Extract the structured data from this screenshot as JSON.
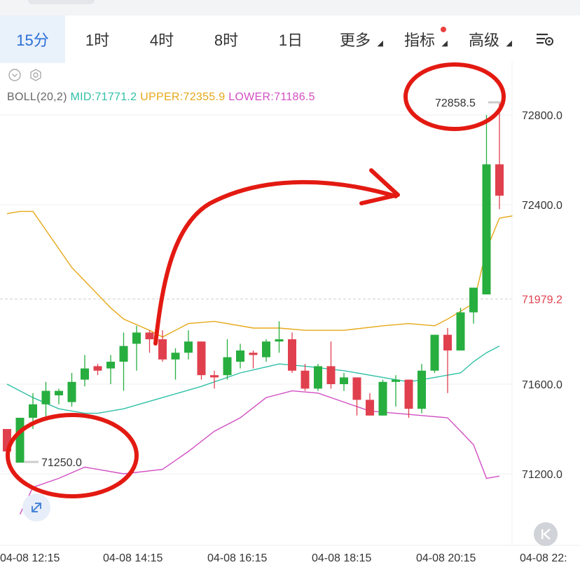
{
  "tabs": [
    {
      "label": "15分",
      "active": true
    },
    {
      "label": "1时"
    },
    {
      "label": "4时"
    },
    {
      "label": "8时"
    },
    {
      "label": "1日"
    },
    {
      "label": "更多",
      "dropdown": true
    },
    {
      "label": "指标",
      "dropdown": true,
      "badge": true
    },
    {
      "label": "高级",
      "dropdown": true
    }
  ],
  "indicator": {
    "name": "BOLL(20,2)",
    "mid": "MID:71771.2",
    "upper": "UPPER:72355.9",
    "lower": "LOWER:71186.5"
  },
  "colors": {
    "up": "#27ae3f",
    "down": "#e0404e",
    "mid": "#2fc0a6",
    "upper": "#e6a817",
    "lower": "#d24fc4",
    "annotation": "#e31a12",
    "price_tag": "#e0404e",
    "accent": "#2a6fd6"
  },
  "icons": [
    "settings-icon",
    "collapse-icon",
    "expand-icon",
    "chevron-down-icon",
    "gear-icon"
  ],
  "chart_data": {
    "type": "candlestick",
    "y_ticks": [
      72800.0,
      72400.0,
      71600.0,
      71200.0
    ],
    "y_tick_labels": [
      "72800.0",
      "72400.0",
      "71600.0",
      "71200.0"
    ],
    "x_tick_labels": [
      "04-08 12:15",
      "04-08 14:15",
      "04-08 16:15",
      "04-08 18:15",
      "04-08 20:15",
      "04-08 22:"
    ],
    "current_price": 71979.2,
    "current_price_label": "71979.2",
    "max_label": "72858.5",
    "min_label": "71250.0",
    "ylim": [
      70950,
      73080
    ],
    "candles": [
      {
        "o": 71400,
        "h": 71400,
        "l": 71300,
        "c": 71300
      },
      {
        "o": 71250,
        "h": 71450,
        "l": 71250,
        "c": 71450
      },
      {
        "o": 71450,
        "h": 71560,
        "l": 71400,
        "c": 71510
      },
      {
        "o": 71510,
        "h": 71610,
        "l": 71450,
        "c": 71570
      },
      {
        "o": 71550,
        "h": 71580,
        "l": 71510,
        "c": 71570
      },
      {
        "o": 71520,
        "h": 71650,
        "l": 71500,
        "c": 71610
      },
      {
        "o": 71620,
        "h": 71730,
        "l": 71590,
        "c": 71670
      },
      {
        "o": 71680,
        "h": 71690,
        "l": 71640,
        "c": 71660
      },
      {
        "o": 71670,
        "h": 71730,
        "l": 71600,
        "c": 71700
      },
      {
        "o": 71700,
        "h": 71830,
        "l": 71570,
        "c": 71770
      },
      {
        "o": 71780,
        "h": 71860,
        "l": 71660,
        "c": 71830
      },
      {
        "o": 71830,
        "h": 71840,
        "l": 71740,
        "c": 71800
      },
      {
        "o": 71800,
        "h": 71840,
        "l": 71700,
        "c": 71710
      },
      {
        "o": 71710,
        "h": 71760,
        "l": 71620,
        "c": 71740
      },
      {
        "o": 71740,
        "h": 71840,
        "l": 71710,
        "c": 71790
      },
      {
        "o": 71790,
        "h": 71790,
        "l": 71620,
        "c": 71640
      },
      {
        "o": 71640,
        "h": 71660,
        "l": 71580,
        "c": 71630
      },
      {
        "o": 71640,
        "h": 71800,
        "l": 71620,
        "c": 71720
      },
      {
        "o": 71700,
        "h": 71780,
        "l": 71670,
        "c": 71750
      },
      {
        "o": 71740,
        "h": 71750,
        "l": 71670,
        "c": 71730
      },
      {
        "o": 71720,
        "h": 71800,
        "l": 71700,
        "c": 71790
      },
      {
        "o": 71790,
        "h": 71880,
        "l": 71740,
        "c": 71800
      },
      {
        "o": 71800,
        "h": 71830,
        "l": 71650,
        "c": 71660
      },
      {
        "o": 71660,
        "h": 71690,
        "l": 71570,
        "c": 71580
      },
      {
        "o": 71580,
        "h": 71690,
        "l": 71570,
        "c": 71680
      },
      {
        "o": 71680,
        "h": 71790,
        "l": 71580,
        "c": 71600
      },
      {
        "o": 71600,
        "h": 71650,
        "l": 71570,
        "c": 71630
      },
      {
        "o": 71630,
        "h": 71630,
        "l": 71460,
        "c": 71530
      },
      {
        "o": 71530,
        "h": 71560,
        "l": 71460,
        "c": 71460
      },
      {
        "o": 71460,
        "h": 71620,
        "l": 71460,
        "c": 71610
      },
      {
        "o": 71610,
        "h": 71640,
        "l": 71500,
        "c": 71620
      },
      {
        "o": 71620,
        "h": 71620,
        "l": 71450,
        "c": 71490
      },
      {
        "o": 71490,
        "h": 71690,
        "l": 71470,
        "c": 71660
      },
      {
        "o": 71660,
        "h": 71820,
        "l": 71650,
        "c": 71820
      },
      {
        "o": 71820,
        "h": 71850,
        "l": 71560,
        "c": 71750
      },
      {
        "o": 71750,
        "h": 71940,
        "l": 71750,
        "c": 71920
      },
      {
        "o": 71920,
        "h": 72030,
        "l": 71870,
        "c": 72030
      },
      {
        "o": 72000,
        "h": 72800,
        "l": 72000,
        "c": 72580
      },
      {
        "o": 72580,
        "h": 72858.5,
        "l": 72380,
        "c": 72440
      }
    ],
    "boll_upper": [
      [
        0,
        72360
      ],
      [
        1,
        72370
      ],
      [
        2,
        72370
      ],
      [
        5,
        72120
      ],
      [
        8,
        71940
      ],
      [
        9,
        71890
      ],
      [
        11,
        71840
      ],
      [
        12,
        71810
      ],
      [
        14,
        71870
      ],
      [
        16,
        71880
      ],
      [
        19,
        71850
      ],
      [
        21,
        71850
      ],
      [
        23,
        71840
      ],
      [
        26,
        71840
      ],
      [
        29,
        71860
      ],
      [
        31,
        71870
      ],
      [
        33,
        71860
      ],
      [
        34,
        71890
      ],
      [
        36,
        71960
      ],
      [
        37,
        72200
      ],
      [
        38,
        72340
      ],
      [
        39,
        72350
      ]
    ],
    "boll_mid": [
      [
        0,
        71600
      ],
      [
        2,
        71540
      ],
      [
        4,
        71490
      ],
      [
        6,
        71470
      ],
      [
        7,
        71470
      ],
      [
        9,
        71490
      ],
      [
        12,
        71540
      ],
      [
        15,
        71590
      ],
      [
        18,
        71650
      ],
      [
        21,
        71690
      ],
      [
        23,
        71680
      ],
      [
        26,
        71660
      ],
      [
        29,
        71630
      ],
      [
        31,
        71610
      ],
      [
        33,
        71630
      ],
      [
        35,
        71650
      ],
      [
        36,
        71700
      ],
      [
        37,
        71740
      ],
      [
        38,
        71770
      ]
    ],
    "boll_lower": [
      [
        1,
        71020
      ],
      [
        2,
        71140
      ],
      [
        4,
        71180
      ],
      [
        6,
        71230
      ],
      [
        7,
        71220
      ],
      [
        9,
        71200
      ],
      [
        12,
        71220
      ],
      [
        14,
        71300
      ],
      [
        16,
        71390
      ],
      [
        18,
        71450
      ],
      [
        20,
        71540
      ],
      [
        22,
        71570
      ],
      [
        24,
        71560
      ],
      [
        26,
        71520
      ],
      [
        28,
        71480
      ],
      [
        30,
        71470
      ],
      [
        32,
        71460
      ],
      [
        34,
        71450
      ],
      [
        36,
        71330
      ],
      [
        37,
        71180
      ],
      [
        38,
        71190
      ]
    ]
  }
}
